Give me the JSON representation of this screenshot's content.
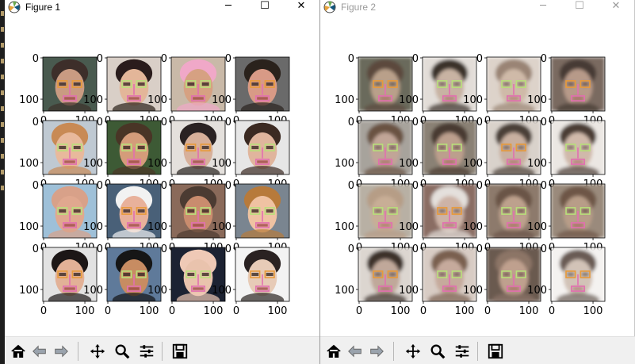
{
  "figures": [
    {
      "title": "Figure 1",
      "style": "original",
      "rows": [
        [
          {
            "skin": "#c99b82",
            "hair": "#3d2f2a",
            "bg": "#4a5a50"
          },
          {
            "skin": "#e3b699",
            "hair": "#2a1f1a",
            "bg": "#d9cfc7"
          },
          {
            "skin": "#d6a182",
            "hair": "#f0a8c8",
            "bg": "#c9b9a8"
          },
          {
            "skin": "#d89a86",
            "hair": "#2b211d",
            "bg": "#6b6b6b"
          }
        ],
        [
          {
            "skin": "#e8b99c",
            "hair": "#c88a55",
            "bg": "#bfc9d2"
          },
          {
            "skin": "#d49c7a",
            "hair": "#4a3526",
            "bg": "#3d5a36"
          },
          {
            "skin": "#d7b09a",
            "hair": "#2a2220",
            "bg": "#e4e0dc"
          },
          {
            "skin": "#e0b59d",
            "hair": "#3a2a22",
            "bg": "#e6e6e6"
          }
        ],
        [
          {
            "skin": "#e0a88f",
            "hair": "#d8a189",
            "bg": "#9ec0d8"
          },
          {
            "skin": "#e8b19b",
            "hair": "#f2f2f2",
            "bg": "#486078"
          },
          {
            "skin": "#c98c6e",
            "hair": "#4b3b30",
            "bg": "#8a6a5a"
          },
          {
            "skin": "#efc2a2",
            "hair": "#b77a3a",
            "bg": "#7a8590"
          }
        ],
        [
          {
            "skin": "#e2b197",
            "hair": "#1e1918",
            "bg": "#e2e2e2"
          },
          {
            "skin": "#c78c62",
            "hair": "#141414",
            "bg": "#5f7a9a"
          },
          {
            "skin": "#e9c3ad",
            "hair": "#efc9b6",
            "bg": "#1c2431"
          },
          {
            "skin": "#e7cbb7",
            "hair": "#2a2422",
            "bg": "#f3f3f3"
          }
        ]
      ],
      "y_ticks": [
        "0",
        "100"
      ],
      "x_ticks": [
        "0",
        "100"
      ]
    },
    {
      "title": "Figure 2",
      "style": "blurred",
      "rows": [
        [
          {
            "skin": "#b9a08a",
            "hair": "#5b4a3e",
            "bg": "#6b6a5c"
          },
          {
            "skin": "#c8b3a3",
            "hair": "#3b302a",
            "bg": "#e2ddd8"
          },
          {
            "skin": "#cfbaa8",
            "hair": "#9a8474",
            "bg": "#ddd3ca"
          },
          {
            "skin": "#b79a89",
            "hair": "#463b35",
            "bg": "#7a6a60"
          }
        ],
        [
          {
            "skin": "#c1a597",
            "hair": "#6a5243",
            "bg": "#a7a39c"
          },
          {
            "skin": "#bc9f8d",
            "hair": "#4a3a30",
            "bg": "#8a8174"
          },
          {
            "skin": "#c9b0a0",
            "hair": "#4c4038",
            "bg": "#d9d2cb"
          },
          {
            "skin": "#d0b9aa",
            "hair": "#4b3d35",
            "bg": "#ebe7e3"
          }
        ],
        [
          {
            "skin": "#c8ae96",
            "hair": "#b69d86",
            "bg": "#b8b0a4"
          },
          {
            "skin": "#cdb3a6",
            "hair": "#e4e0dc",
            "bg": "#8a6d63"
          },
          {
            "skin": "#bda18d",
            "hair": "#6b5447",
            "bg": "#8d7a6c"
          },
          {
            "skin": "#b89d88",
            "hair": "#6e5646",
            "bg": "#9a8a7c"
          }
        ],
        [
          {
            "skin": "#c0a89a",
            "hair": "#3c302a",
            "bg": "#dcd6d0"
          },
          {
            "skin": "#c6aa9c",
            "hair": "#7a6050",
            "bg": "#d8ccc4"
          },
          {
            "skin": "#bfa08e",
            "hair": "#8c7466",
            "bg": "#6a5a50"
          },
          {
            "skin": "#d2c3b7",
            "hair": "#6a5c54",
            "bg": "#f4f2f0"
          }
        ]
      ],
      "y_ticks": [
        "0",
        "100"
      ],
      "x_ticks": [
        "0",
        "100"
      ]
    }
  ],
  "toolbar": {
    "items": [
      "home-icon",
      "back-arrow-icon",
      "forward-arrow-icon",
      "pan-icon",
      "zoom-icon",
      "configure-subplots-icon",
      "save-icon"
    ]
  },
  "colors": {
    "overlay_green": "#b8e07a",
    "overlay_pink": "#e26fb0",
    "overlay_orange": "#e89a3a"
  }
}
